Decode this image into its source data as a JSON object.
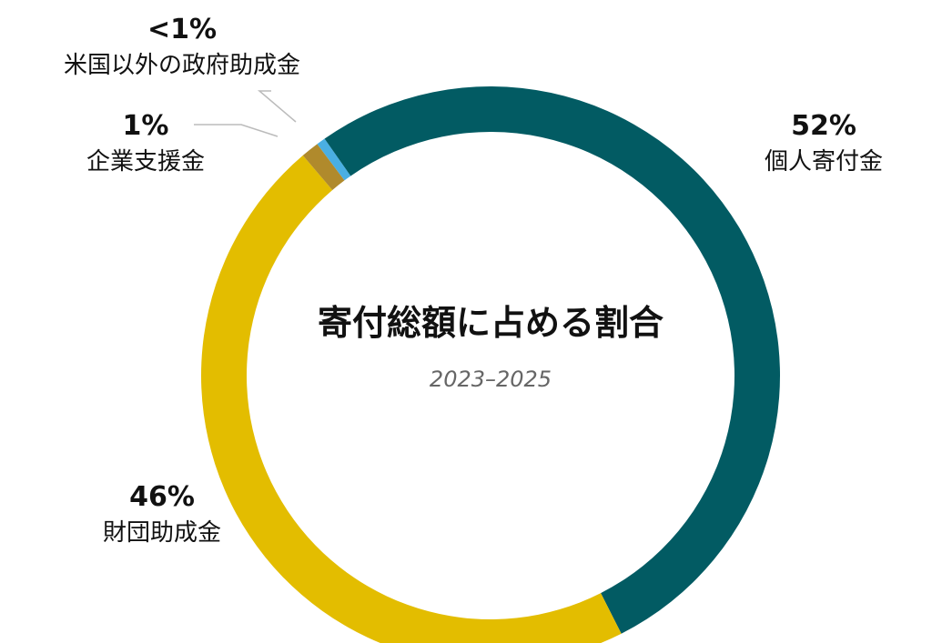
{
  "chart_data": {
    "type": "pie",
    "title": "寄付総額に占める割合",
    "subtitle": "2023–2025",
    "slices": [
      {
        "pct_label": "52%",
        "label": "個人寄付金",
        "value": 52,
        "color": "#025b63"
      },
      {
        "pct_label": "46%",
        "label": "財団助成金",
        "value": 46,
        "color": "#e3bd00"
      },
      {
        "pct_label": "1%",
        "label": "企業支援金",
        "value": 1,
        "color": "#b08a2c"
      },
      {
        "pct_label": "<1%",
        "label": "米国以外の政府助成金",
        "value": 0.5,
        "color": "#4aafe3"
      }
    ],
    "legend": "none",
    "grid": false
  }
}
